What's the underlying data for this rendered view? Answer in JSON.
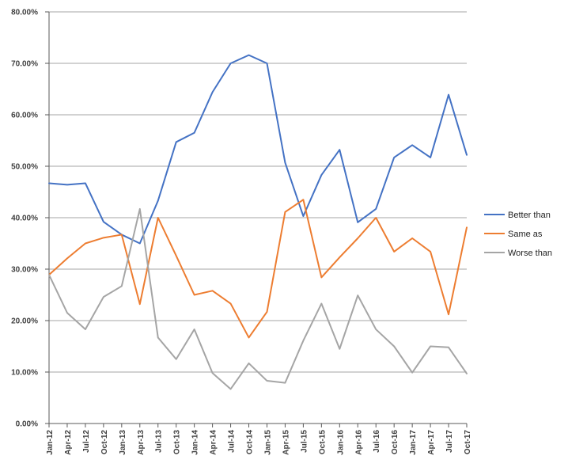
{
  "chart_data": {
    "type": "line",
    "categories": [
      "Jan-12",
      "Apr-12",
      "Jul-12",
      "Oct-12",
      "Jan-13",
      "Apr-13",
      "Jul-13",
      "Oct-13",
      "Jan-14",
      "Apr-14",
      "Jul-14",
      "Oct-14",
      "Jan-15",
      "Apr-15",
      "Jul-15",
      "Oct-15",
      "Jan-16",
      "Apr-16",
      "Jul-16",
      "Oct-16",
      "Jan-17",
      "Apr-17",
      "Jul-17",
      "Oct-17"
    ],
    "ylim": [
      0,
      80
    ],
    "yticks": [
      "0.00%",
      "10.00%",
      "20.00%",
      "30.00%",
      "40.00%",
      "50.00%",
      "60.00%",
      "70.00%",
      "80.00%"
    ],
    "ytick_values": [
      0,
      10,
      20,
      30,
      40,
      50,
      60,
      70,
      80
    ],
    "grid": true,
    "legend_position": "right",
    "series": [
      {
        "name": "Better than",
        "color": "#4472C4",
        "values": [
          46.7,
          46.4,
          46.7,
          39.2,
          36.7,
          35.0,
          43.3,
          54.7,
          56.5,
          64.4,
          70.0,
          71.6,
          70.0,
          50.7,
          40.3,
          48.3,
          53.2,
          39.1,
          41.7,
          51.7,
          54.1,
          51.7,
          63.9,
          52.2
        ]
      },
      {
        "name": "Same as",
        "color": "#ED7D31",
        "values": [
          28.9,
          32.1,
          35.0,
          36.1,
          36.7,
          23.2,
          40.0,
          32.6,
          25.0,
          25.8,
          23.3,
          16.7,
          21.7,
          41.1,
          43.5,
          28.4,
          32.3,
          36.0,
          40.0,
          33.4,
          36.0,
          33.4,
          21.2,
          38.1
        ]
      },
      {
        "name": "Worse than",
        "color": "#A5A5A5",
        "values": [
          28.9,
          21.5,
          18.3,
          24.6,
          26.7,
          41.7,
          16.7,
          12.5,
          18.3,
          9.8,
          6.7,
          11.7,
          8.3,
          7.9,
          16.1,
          23.3,
          14.5,
          24.9,
          18.3,
          15.0,
          9.9,
          15.0,
          14.8,
          9.7
        ]
      }
    ]
  }
}
